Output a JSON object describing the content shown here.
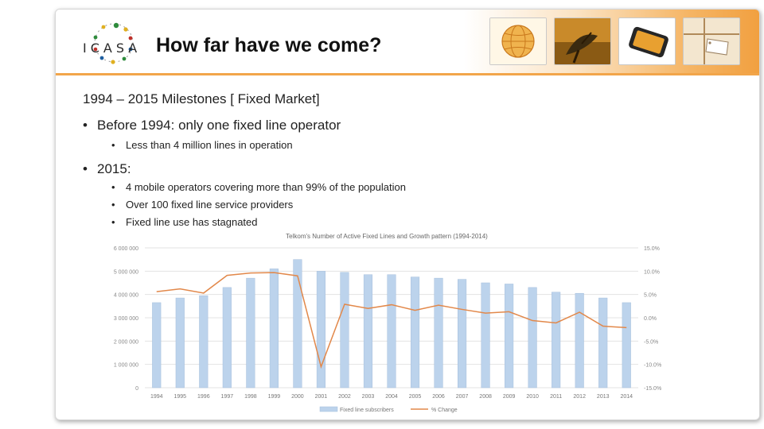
{
  "slide": {
    "logo_text": "ICASA",
    "title": "How far have we come?",
    "subtitle": "1994 – 2015 Milestones [ Fixed Market]",
    "bullets": [
      {
        "text": "Before 1994: only one fixed line operator",
        "sub": [
          "Less than 4 million lines in operation"
        ]
      },
      {
        "text": "2015:",
        "sub": [
          "4 mobile operators covering more than 99% of the population",
          "Over 100 fixed line service providers",
          "Fixed line use has stagnated"
        ]
      }
    ],
    "thumbnails": [
      "globe-icon",
      "satellite-dish-icon",
      "mobile-phone-icon",
      "parcel-tag-icon"
    ]
  },
  "colors": {
    "accent": "#f2a54a",
    "bar": "#bcd3ec",
    "line": "#e2884a"
  },
  "chart_data": {
    "type": "bar",
    "title": "Telkom's Number of Active Fixed Lines and Growth pattern (1994-2014)",
    "categories": [
      "1994",
      "1995",
      "1996",
      "1997",
      "1998",
      "1999",
      "2000",
      "2001",
      "2002",
      "2003",
      "2004",
      "2005",
      "2006",
      "2007",
      "2008",
      "2009",
      "2010",
      "2011",
      "2012",
      "2013",
      "2014"
    ],
    "series": [
      {
        "name": "Fixed line subscribers",
        "type": "bar",
        "axis": "left",
        "values": [
          3650000,
          3850000,
          3950000,
          4300000,
          4700000,
          5100000,
          5500000,
          5000000,
          4950000,
          4850000,
          4850000,
          4750000,
          4700000,
          4650000,
          4500000,
          4450000,
          4300000,
          4100000,
          4050000,
          3850000,
          3650000
        ]
      },
      {
        "name": "% Change",
        "type": "line",
        "axis": "right",
        "values": [
          5.6,
          6.2,
          5.3,
          9.1,
          9.6,
          9.7,
          9.0,
          -10.5,
          2.9,
          2.0,
          2.8,
          1.6,
          2.7,
          1.8,
          1.0,
          1.3,
          -0.6,
          -1.1,
          1.2,
          -1.8,
          -2.1
        ]
      }
    ],
    "yleft": {
      "ylim": [
        0,
        6000000
      ],
      "ticks": [
        "0",
        "1 000 000",
        "2 000 000",
        "3 000 000",
        "4 000 000",
        "5 000 000",
        "6 000 000"
      ]
    },
    "yright": {
      "ylim": [
        -15,
        15
      ],
      "ticks": [
        "-15.0%",
        "-10.0%",
        "-5.0%",
        "0.0%",
        "5.0%",
        "10.0%",
        "15.0%"
      ]
    },
    "legend_position": "bottom",
    "legend": [
      "Fixed line subscribers",
      "% Change"
    ],
    "grid": true
  }
}
